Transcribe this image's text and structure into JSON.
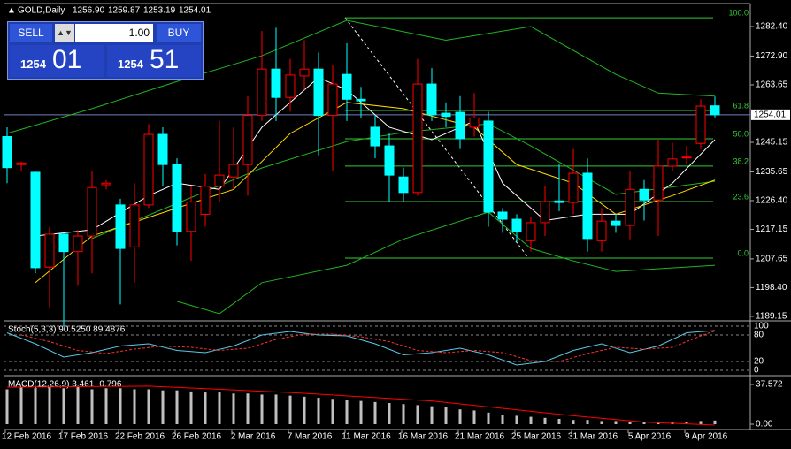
{
  "header": {
    "symbol": "GOLD,Daily",
    "ohlc": [
      "1256.90",
      "1259.87",
      "1253.19",
      "1254.01"
    ]
  },
  "trade_panel": {
    "sell": "SELL",
    "buy": "BUY",
    "lot": "1.00",
    "bid_big": "1254",
    "bid_small": "01",
    "ask_big": "1254",
    "ask_small": "51"
  },
  "chart_data": {
    "type": "candlestick",
    "ylim": [
      1188.0,
      1288.66
    ],
    "yticks": [
      {
        "value": 1282.4,
        "label": "1282.40"
      },
      {
        "value": 1272.9,
        "label": "1272.90"
      },
      {
        "value": 1263.65,
        "label": "1263.65"
      },
      {
        "value": 1245.15,
        "label": "1245.15"
      },
      {
        "value": 1235.65,
        "label": "1235.65"
      },
      {
        "value": 1226.4,
        "label": "1226.40"
      },
      {
        "value": 1217.15,
        "label": "1217.15"
      },
      {
        "value": 1207.65,
        "label": "1207.65"
      },
      {
        "value": 1198.4,
        "label": "1198.40"
      },
      {
        "value": 1189.15,
        "label": "1189.15"
      }
    ],
    "current_price": {
      "value": 1254.01,
      "label": "1254.01"
    },
    "up_color": "#ff0000",
    "down_color": "#00ffff",
    "open": [
      1247,
      1238,
      1235.5,
      1205,
      1215.6,
      1210,
      1215,
      1231.5,
      1225,
      1211.5,
      1225,
      1247.7,
      1238,
      1216.5,
      1222,
      1231,
      1234,
      1238,
      1253.8,
      1268.7,
      1259.6,
      1266.5,
      1268.7,
      1253.8,
      1267,
      1259,
      1250,
      1244,
      1234,
      1229,
      1263.9,
      1254.5,
      1254.8,
      1250,
      1252,
      1222.7,
      1220.4,
      1213.5,
      1219.3,
      1226.3,
      1225.8,
      1235.2,
      1213.5,
      1219.8,
      1218.4,
      1230,
      1226.6,
      1237.5,
      1240.2,
      1244.8,
      1256.9
    ],
    "close": [
      1237,
      1238.5,
      1204.8,
      1215.6,
      1210,
      1215,
      1230.6,
      1232,
      1211,
      1225,
      1247.7,
      1238,
      1216.5,
      1226,
      1231,
      1234.6,
      1238,
      1253.8,
      1268.7,
      1259.6,
      1266.8,
      1268.7,
      1253.8,
      1263.9,
      1259,
      1258.5,
      1244,
      1234.6,
      1229,
      1263.9,
      1254,
      1253.5,
      1246.3,
      1253,
      1222.7,
      1220.4,
      1216.4,
      1219.3,
      1226.1,
      1225.8,
      1235.2,
      1214.2,
      1219.8,
      1218.4,
      1230,
      1226.6,
      1237.5,
      1239.8,
      1240.4,
      1256.8,
      1254.01
    ],
    "high": [
      1250,
      1239,
      1236,
      1218,
      1216,
      1217,
      1236,
      1233,
      1227,
      1232,
      1251,
      1250,
      1240,
      1231,
      1235,
      1252,
      1250,
      1260,
      1281,
      1282,
      1272,
      1278,
      1274,
      1270,
      1277,
      1263,
      1254,
      1248,
      1237,
      1272,
      1269,
      1258,
      1260,
      1261,
      1255,
      1224,
      1222,
      1221,
      1231,
      1238,
      1243,
      1240,
      1224,
      1222,
      1236,
      1233,
      1246,
      1245,
      1244,
      1259,
      1259.87
    ],
    "low": [
      1232,
      1236,
      1203,
      1192,
      1186,
      1199,
      1203,
      1230,
      1193,
      1200,
      1224,
      1231,
      1212,
      1207,
      1218,
      1226,
      1230,
      1228,
      1252,
      1252,
      1255,
      1262,
      1241,
      1236,
      1252,
      1253,
      1240,
      1226,
      1226,
      1228,
      1252,
      1250,
      1243,
      1247,
      1218,
      1216,
      1213,
      1210,
      1215,
      1223,
      1222,
      1210,
      1210,
      1216,
      1214,
      1220,
      1215,
      1236,
      1238,
      1243,
      1253.19
    ],
    "indicators": [
      {
        "color": "#22b422",
        "x": [
          0,
          6,
          12,
          18,
          24,
          31,
          37,
          43,
          46,
          50
        ],
        "values": [
          1248,
          1256,
          1264.7,
          1273,
          1284.4,
          1278,
          1282.4,
          1267,
          1261,
          1260
        ]
      },
      {
        "color": "#22b422",
        "x": [
          12,
          15,
          18,
          24,
          28,
          34,
          37,
          40,
          43,
          50
        ],
        "values": [
          1194,
          1190,
          1200,
          1205.6,
          1214,
          1222.7,
          1211,
          1207,
          1203.6,
          1205.6
        ]
      },
      {
        "color": "#22b422",
        "x": [
          6,
          12,
          18,
          24,
          28,
          34,
          37,
          43,
          50
        ],
        "values": [
          1214.2,
          1225.5,
          1236.9,
          1245.4,
          1248.3,
          1251.1,
          1244,
          1228.4,
          1232.6
        ]
      },
      {
        "color": "#ffffff",
        "x": [
          2,
          6,
          10,
          12,
          15,
          18,
          22,
          24,
          27,
          30,
          33,
          35,
          38,
          41,
          44,
          47,
          50
        ],
        "values": [
          1215,
          1217,
          1228,
          1232,
          1230,
          1250,
          1266,
          1262,
          1250,
          1246,
          1252,
          1232,
          1220,
          1222,
          1222,
          1232,
          1246
        ]
      },
      {
        "color": "#ffd700",
        "x": [
          2,
          6,
          12,
          16,
          20,
          24,
          28,
          33,
          36,
          40,
          43,
          47,
          50
        ],
        "values": [
          1200,
          1215,
          1224,
          1230,
          1248,
          1258,
          1256,
          1250,
          1238,
          1232,
          1222,
          1228,
          1233
        ]
      }
    ],
    "fib": {
      "color": "#33cc33",
      "levels": [
        {
          "value": 1285.2,
          "label": "100.0"
        },
        {
          "value": 1255.4,
          "label": "61.8"
        },
        {
          "value": 1246.3,
          "label": "50.0"
        },
        {
          "value": 1237.5,
          "label": "38.2"
        },
        {
          "value": 1226.1,
          "label": "23.6"
        },
        {
          "value": 1207.9,
          "label": "0.0"
        }
      ]
    },
    "stoch": {
      "title": "Stoch(5,3,3) 90.5250 89.4876",
      "ylim": [
        0,
        100
      ],
      "yticks": [
        100,
        80,
        20,
        0
      ],
      "main": {
        "color": "#5ac8e6",
        "x": [
          0,
          2,
          4,
          6,
          8,
          10,
          12,
          14,
          16,
          18,
          20,
          22,
          24,
          26,
          28,
          30,
          32,
          34,
          36,
          38,
          40,
          42,
          44,
          46,
          48,
          50
        ],
        "values": [
          85,
          60,
          30,
          40,
          55,
          60,
          45,
          40,
          55,
          80,
          88,
          80,
          78,
          60,
          35,
          40,
          50,
          35,
          12,
          20,
          45,
          60,
          40,
          55,
          85,
          90
        ]
      },
      "signal": {
        "color": "#ff3030",
        "x": [
          1,
          3,
          5,
          7,
          9,
          11,
          13,
          15,
          17,
          19,
          21,
          23,
          25,
          27,
          29,
          31,
          33,
          35,
          37,
          39,
          41,
          43,
          45,
          47,
          49,
          50
        ],
        "values": [
          80,
          65,
          45,
          38,
          48,
          55,
          52,
          45,
          50,
          70,
          82,
          82,
          76,
          65,
          45,
          40,
          45,
          40,
          22,
          20,
          38,
          52,
          48,
          52,
          78,
          89
        ]
      }
    },
    "macd": {
      "title": "MACD(12,26,9) 3.461 -0.796",
      "ylim": [
        0,
        37.572
      ],
      "yticks": [
        {
          "value": 37.572,
          "label": "37.572"
        },
        {
          "value": 0,
          "label": "0.00"
        }
      ],
      "hist_color": "#c0c0c0",
      "histogram": [
        33,
        35,
        34,
        35,
        34,
        35,
        33,
        34,
        34,
        33,
        33,
        32,
        32,
        31,
        30,
        30,
        29,
        29,
        28,
        28,
        27,
        26,
        25,
        24,
        23,
        22,
        21,
        20,
        19,
        18,
        17,
        16,
        14,
        13,
        11,
        9,
        8,
        7,
        6,
        5,
        4,
        4,
        3,
        3,
        2,
        2,
        2,
        2,
        2,
        3,
        3.461
      ],
      "signal": {
        "color": "#ff0000",
        "x": [
          0,
          10,
          20,
          30,
          40,
          45,
          50
        ],
        "values": [
          35,
          36,
          30,
          22,
          8,
          2,
          -0.796
        ]
      }
    },
    "dates": [
      "12 Feb 2016",
      "17 Feb 2016",
      "22 Feb 2016",
      "26 Feb 2016",
      "2 Mar 2016",
      "7 Mar 2016",
      "11 Mar 2016",
      "16 Mar 2016",
      "21 Mar 2016",
      "25 Mar 2016",
      "31 Mar 2016",
      "5 Apr 2016",
      "9 Apr 2016"
    ]
  }
}
